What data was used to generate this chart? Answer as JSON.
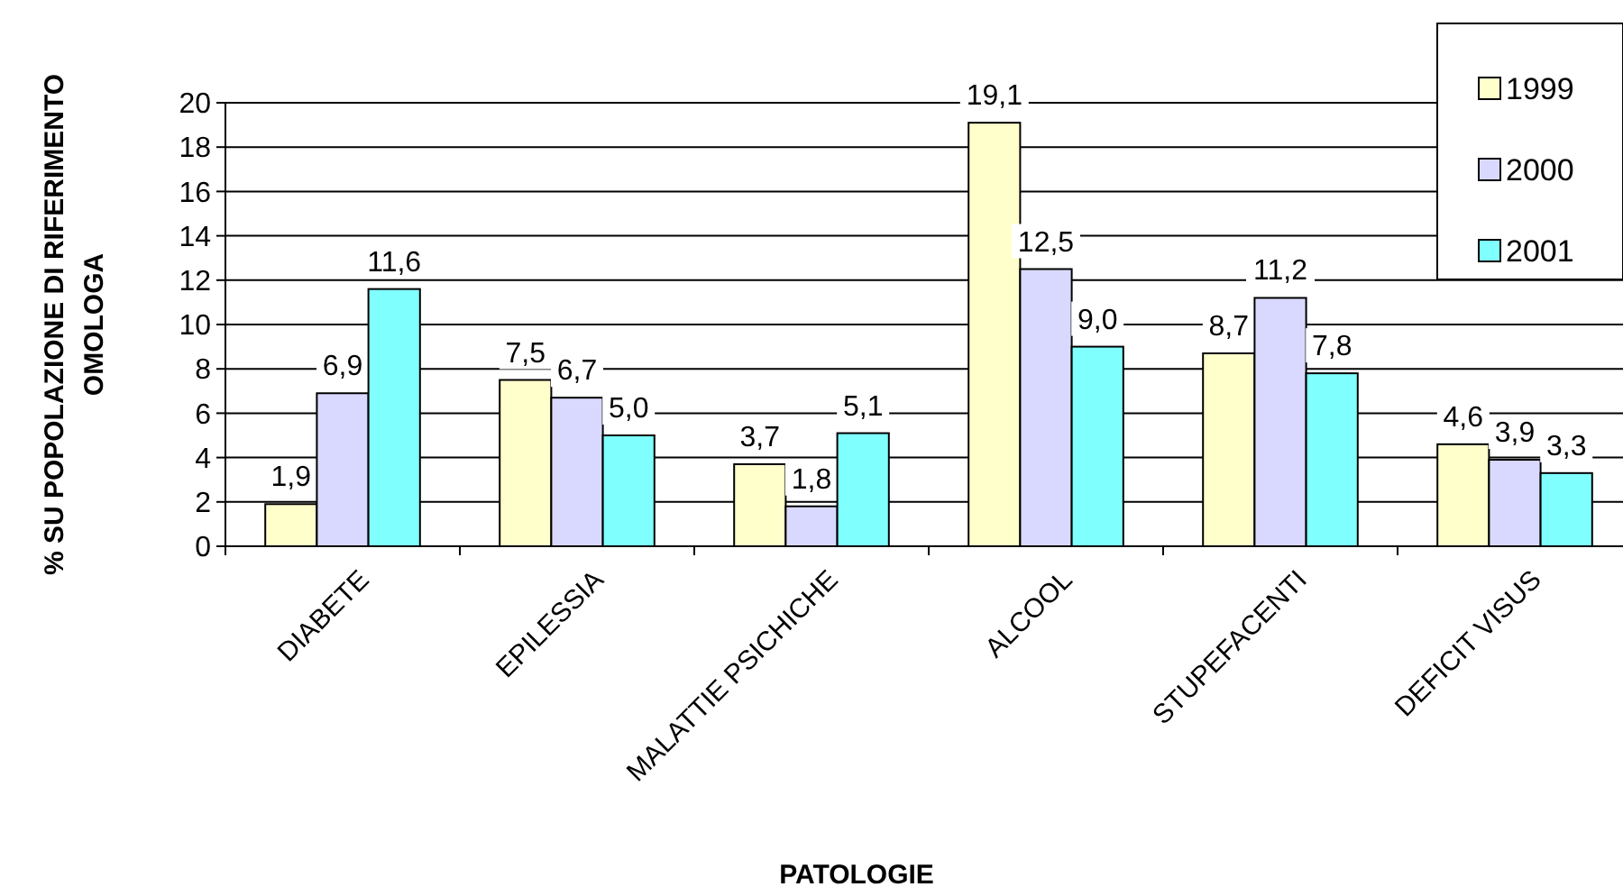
{
  "chart_data": {
    "type": "bar",
    "xlabel": "PATOLOGIE",
    "ylabel": "% SU POPOLAZIONE DI RIFERIMENTO OMOLOGA",
    "categories": [
      "DIABETE",
      "EPILESSIA",
      "MALATTIE PSICHICHE",
      "ALCOOL",
      "STUPEFACENTI",
      "DEFICIT VISUS"
    ],
    "series": [
      {
        "name": "1999",
        "color": "#ffffcc",
        "values": [
          1.9,
          7.5,
          3.7,
          19.1,
          8.7,
          4.6
        ],
        "value_labels": [
          "1,9",
          "7,5",
          "3,7",
          "19,1",
          "8,7",
          "4,6"
        ]
      },
      {
        "name": "2000",
        "color": "#d9d9ff",
        "values": [
          6.9,
          6.7,
          1.8,
          12.5,
          11.2,
          3.9
        ],
        "value_labels": [
          "6,9",
          "6,7",
          "1,8",
          "12,5",
          "11,2",
          "3,9"
        ]
      },
      {
        "name": "2001",
        "color": "#80ffff",
        "values": [
          11.6,
          5.0,
          5.1,
          9.0,
          7.8,
          3.3
        ],
        "value_labels": [
          "11,6",
          "5,0",
          "5,1",
          "9,0",
          "7,8",
          "3,3"
        ]
      }
    ],
    "ylim": [
      0,
      20
    ],
    "yticks": [
      0,
      2,
      4,
      6,
      8,
      10,
      12,
      14,
      16,
      18,
      20
    ],
    "grid": "y",
    "legend": "top right"
  }
}
